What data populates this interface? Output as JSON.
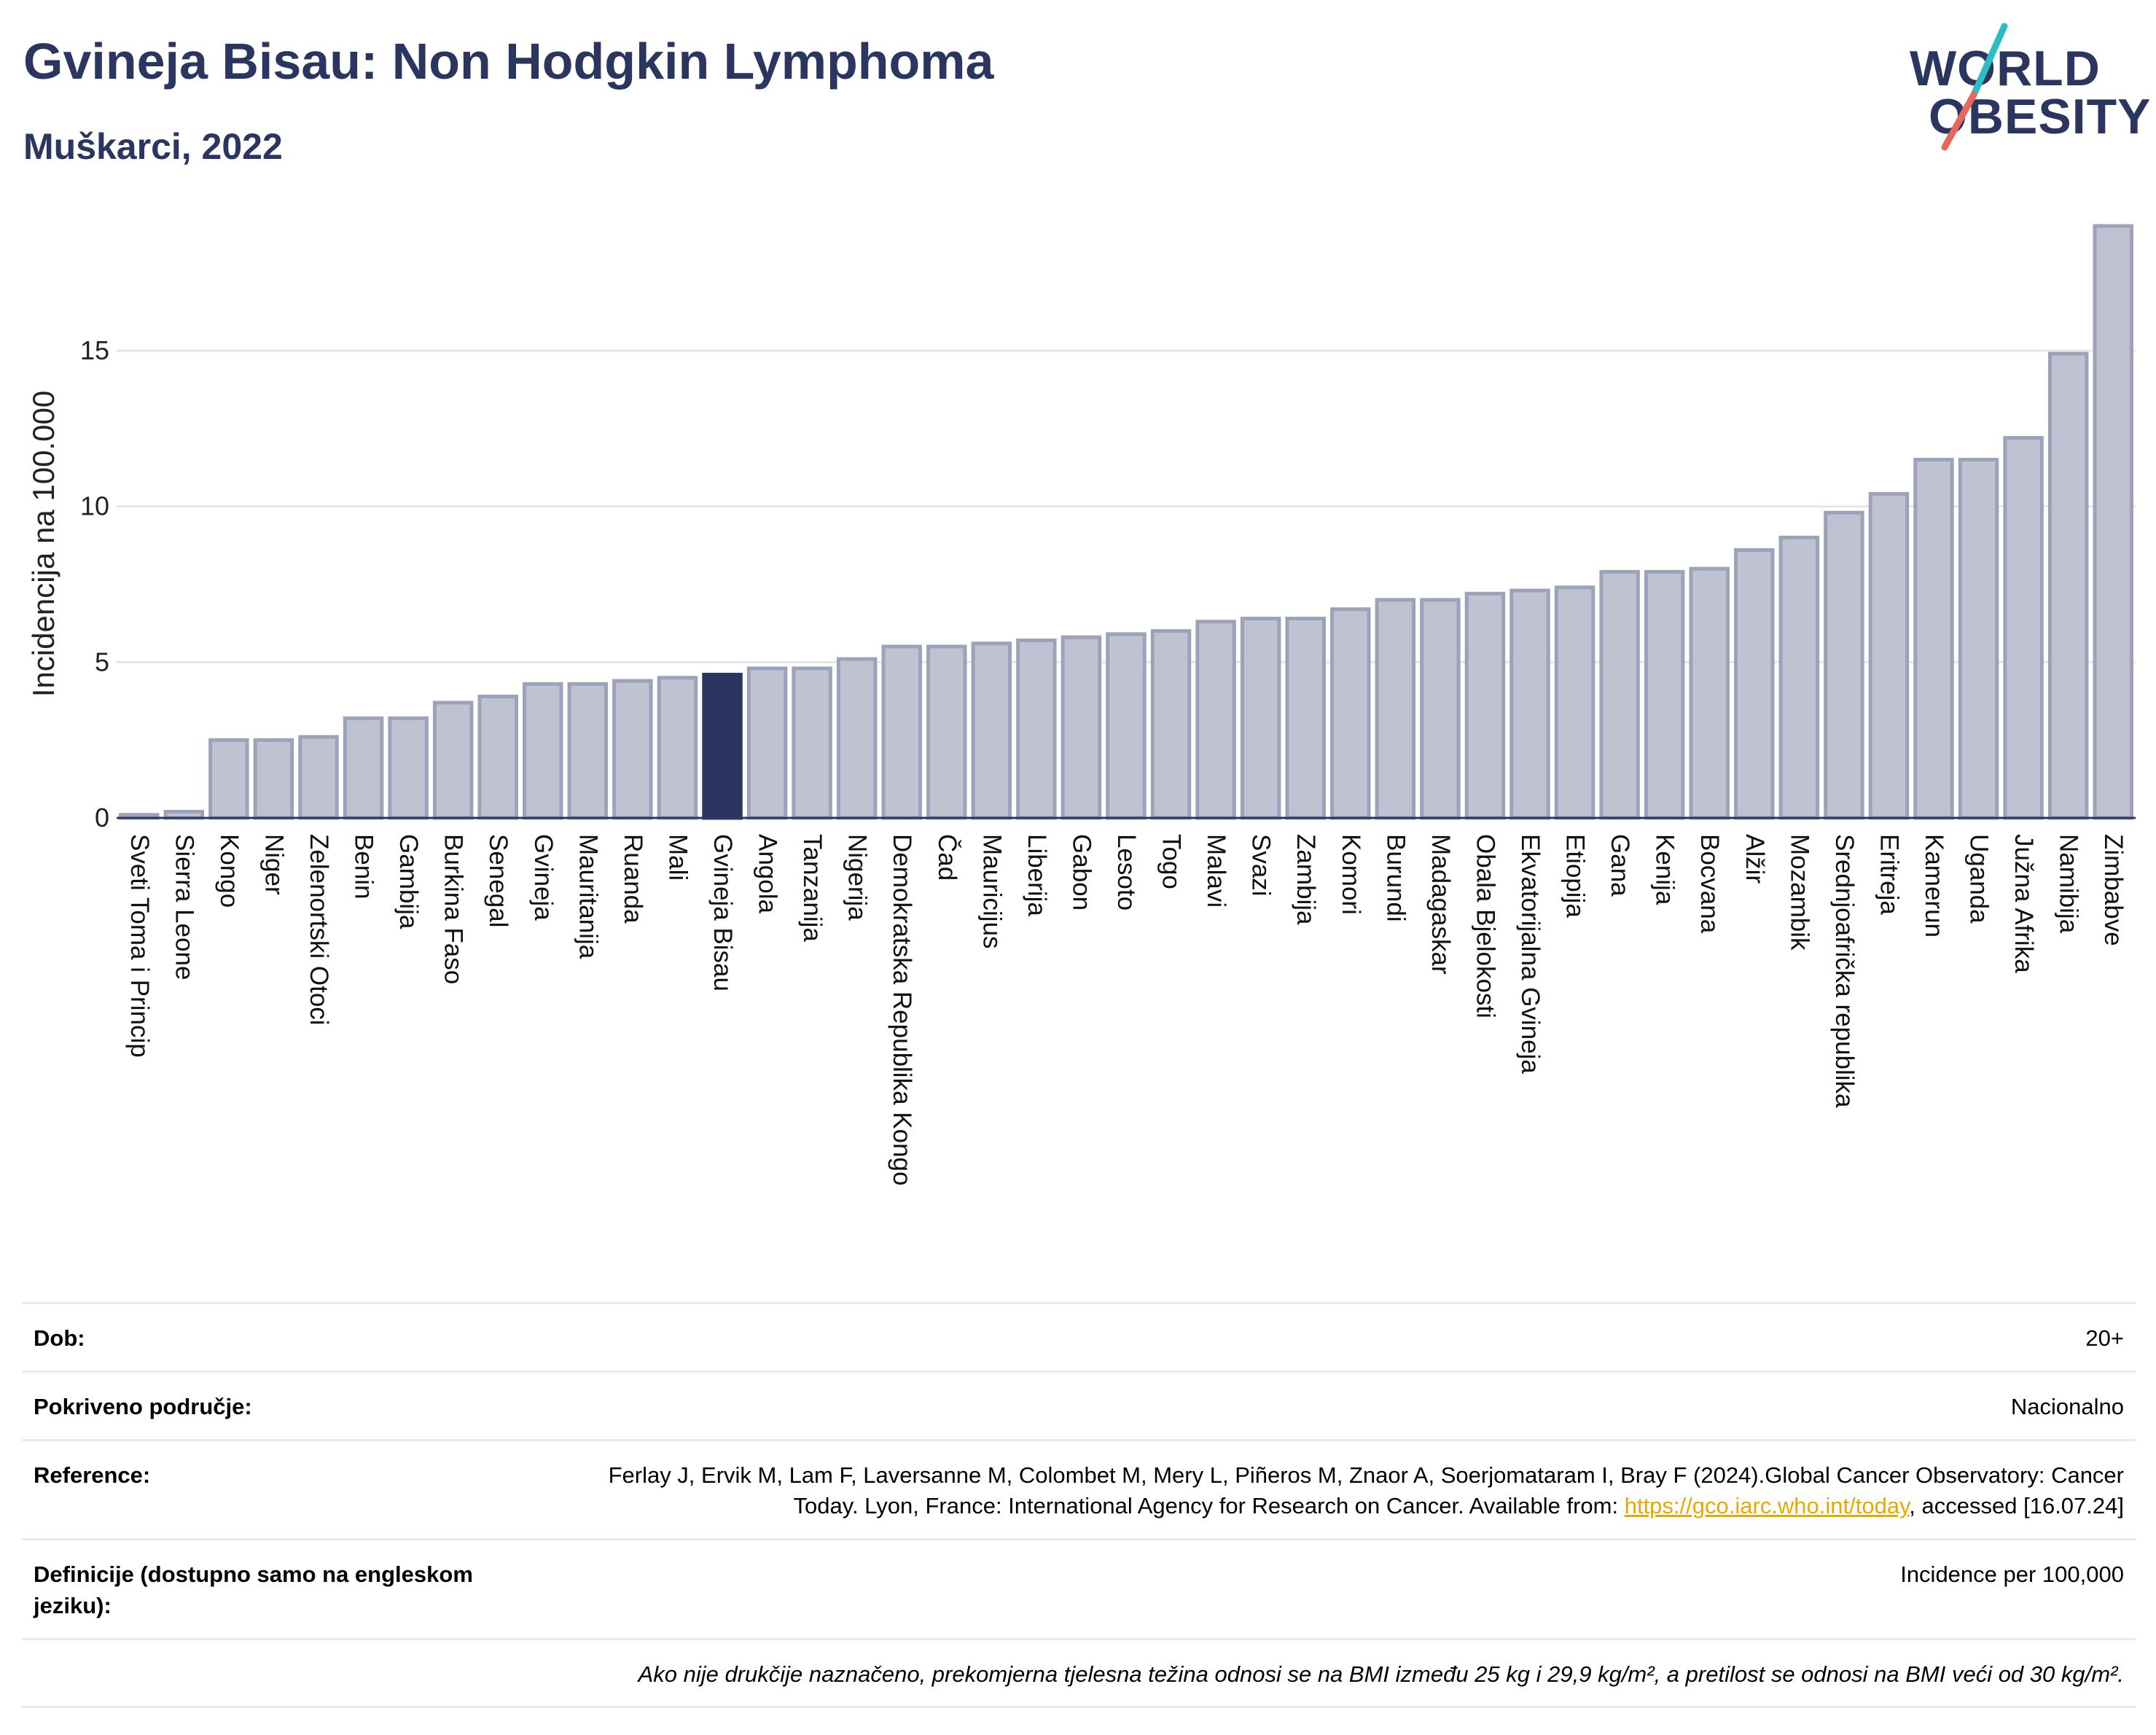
{
  "header": {
    "title": "Gvineja Bisau: Non Hodgkin Lymphoma",
    "subtitle": "Muškarci, 2022"
  },
  "logo": {
    "line1": "WORLD",
    "line2": "OBESITY",
    "text_color": "#2a3560",
    "slash_colors": [
      "#2bbcc4",
      "#e8665a"
    ]
  },
  "colors": {
    "bar_default": "#bfc3d1",
    "bar_default_border": "#9ca2ba",
    "bar_highlight": "#2a3560",
    "grid": "#e4e6ec",
    "axis_line": "#2a3560"
  },
  "chart_data": {
    "type": "bar",
    "title": "Gvineja Bisau: Non Hodgkin Lymphoma",
    "subtitle": "Muškarci, 2022",
    "xlabel": "",
    "ylabel": "Incidencija na 100.000",
    "ylim": [
      0,
      19
    ],
    "yticks": [
      0,
      5,
      10,
      15
    ],
    "grid": true,
    "highlight": "Gvineja Bisau",
    "categories": [
      "Sveti Toma i Princip",
      "Sierra Leone",
      "Kongo",
      "Niger",
      "Zelenortski Otoci",
      "Benin",
      "Gambija",
      "Burkina Faso",
      "Senegal",
      "Gvineja",
      "Mauritanija",
      "Ruanda",
      "Mali",
      "Gvineja Bisau",
      "Angola",
      "Tanzanija",
      "Nigerija",
      "Demokratska Republika Kongo",
      "Čad",
      "Mauricijus",
      "Liberija",
      "Gabon",
      "Lesoto",
      "Togo",
      "Malavi",
      "Svazi",
      "Zambija",
      "Komori",
      "Burundi",
      "Madagaskar",
      "Obala Bjelokosti",
      "Ekvatorijalna Gvineja",
      "Etiopija",
      "Gana",
      "Kenija",
      "Bocvana",
      "Alžir",
      "Mozambik",
      "Srednjoafrička republika",
      "Eritreja",
      "Kamerun",
      "Uganda",
      "Južna Afrika",
      "Namibija",
      "Zimbabve"
    ],
    "values": [
      0.1,
      0.2,
      2.5,
      2.5,
      2.6,
      3.2,
      3.2,
      3.7,
      3.9,
      4.3,
      4.3,
      4.4,
      4.5,
      4.6,
      4.8,
      4.8,
      5.1,
      5.5,
      5.5,
      5.6,
      5.7,
      5.8,
      5.9,
      6.0,
      6.3,
      6.4,
      6.4,
      6.7,
      7.0,
      7.0,
      7.2,
      7.3,
      7.4,
      7.9,
      7.9,
      8.0,
      8.6,
      9.0,
      9.8,
      10.4,
      11.5,
      11.5,
      12.2,
      14.9,
      19.0
    ]
  },
  "footer": {
    "age_label": "Dob:",
    "age_value": "20+",
    "coverage_label": "Pokriveno područje:",
    "coverage_value": "Nacionalno",
    "reference_label": "Reference:",
    "reference_text_before": "Ferlay J, Ervik M, Lam F, Laversanne M, Colombet M, Mery L, Piñeros M, Znaor A, Soerjomataram I, Bray F (2024).Global Cancer Observatory: Cancer Today. Lyon, France: International Agency for Research on Cancer. Available from: ",
    "reference_link": "https://gco.iarc.who.int/today",
    "reference_text_after": ", accessed [16.07.24]",
    "definitions_label": "Definicije (dostupno samo na engleskom jeziku):",
    "definitions_value": "Incidence per 100,000",
    "note": "Ako nije drukčije naznačeno, prekomjerna tjelesna težina odnosi se na BMI između 25 kg i 29,9 kg/m², a pretilost se odnosi na BMI veći od 30 kg/m²."
  }
}
